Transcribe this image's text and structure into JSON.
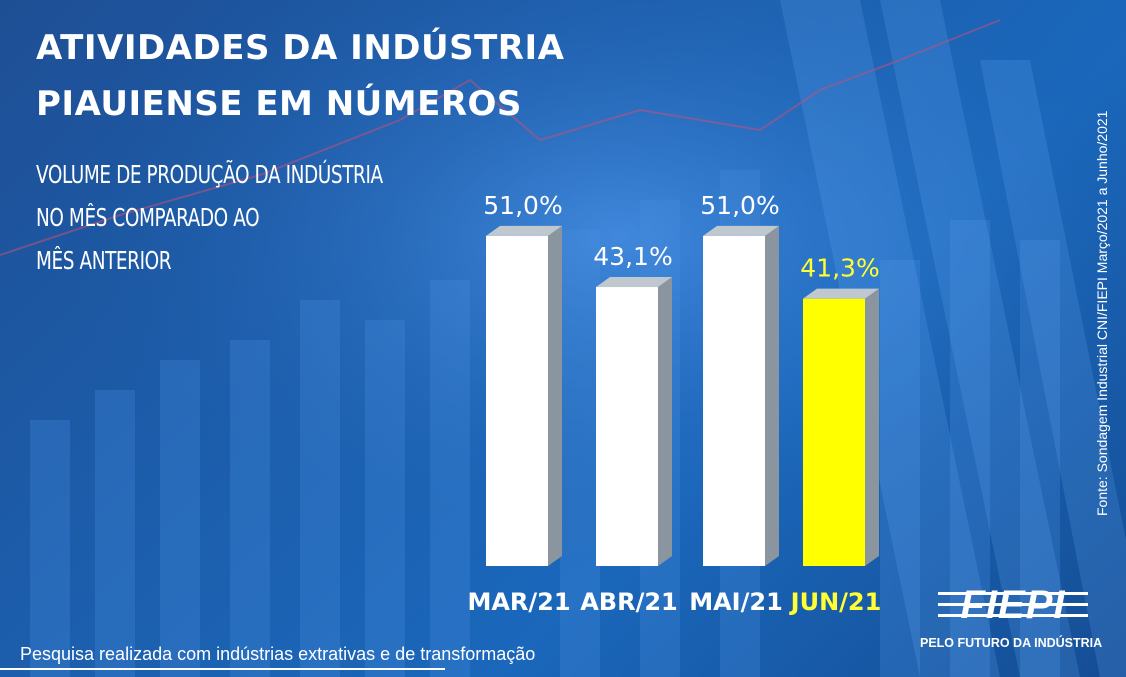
{
  "header": {
    "title_line1": "ATIVIDADES DA INDÚSTRIA",
    "title_line2": "PIAUIENSE EM NÚMEROS",
    "subtitle_line1": "VOLUME DE PRODUÇÃO DA INDÚSTRIA",
    "subtitle_line2": "NO MÊS COMPARADO AO",
    "subtitle_line3": "MÊS ANTERIOR"
  },
  "chart_data": {
    "type": "bar",
    "categories": [
      "MAR/21",
      "ABR/21",
      "MAI/21",
      "JUN/21"
    ],
    "values": [
      51.0,
      43.1,
      51.0,
      41.3
    ],
    "value_labels": [
      "51,0%",
      "43,1%",
      "51,0%",
      "41,3%"
    ],
    "highlight_index": 3,
    "ylim": [
      0,
      55
    ],
    "colors": {
      "bar": "#ffffff",
      "bar_side": "#8a95a0",
      "bar_top": "#bfc7cf",
      "highlight": "#ffff00",
      "highlight_label": "#ffff33",
      "label": "#ffffff"
    }
  },
  "source": "Fonte: Sondagem Industrial CNI/FIEPI Março/2021 a Junho/2021",
  "logo": {
    "name": "FIEPI",
    "tagline": "PELO FUTURO DA INDÚSTRIA"
  },
  "footnote": "Pesquisa realizada com indústrias extrativas e de transformação"
}
